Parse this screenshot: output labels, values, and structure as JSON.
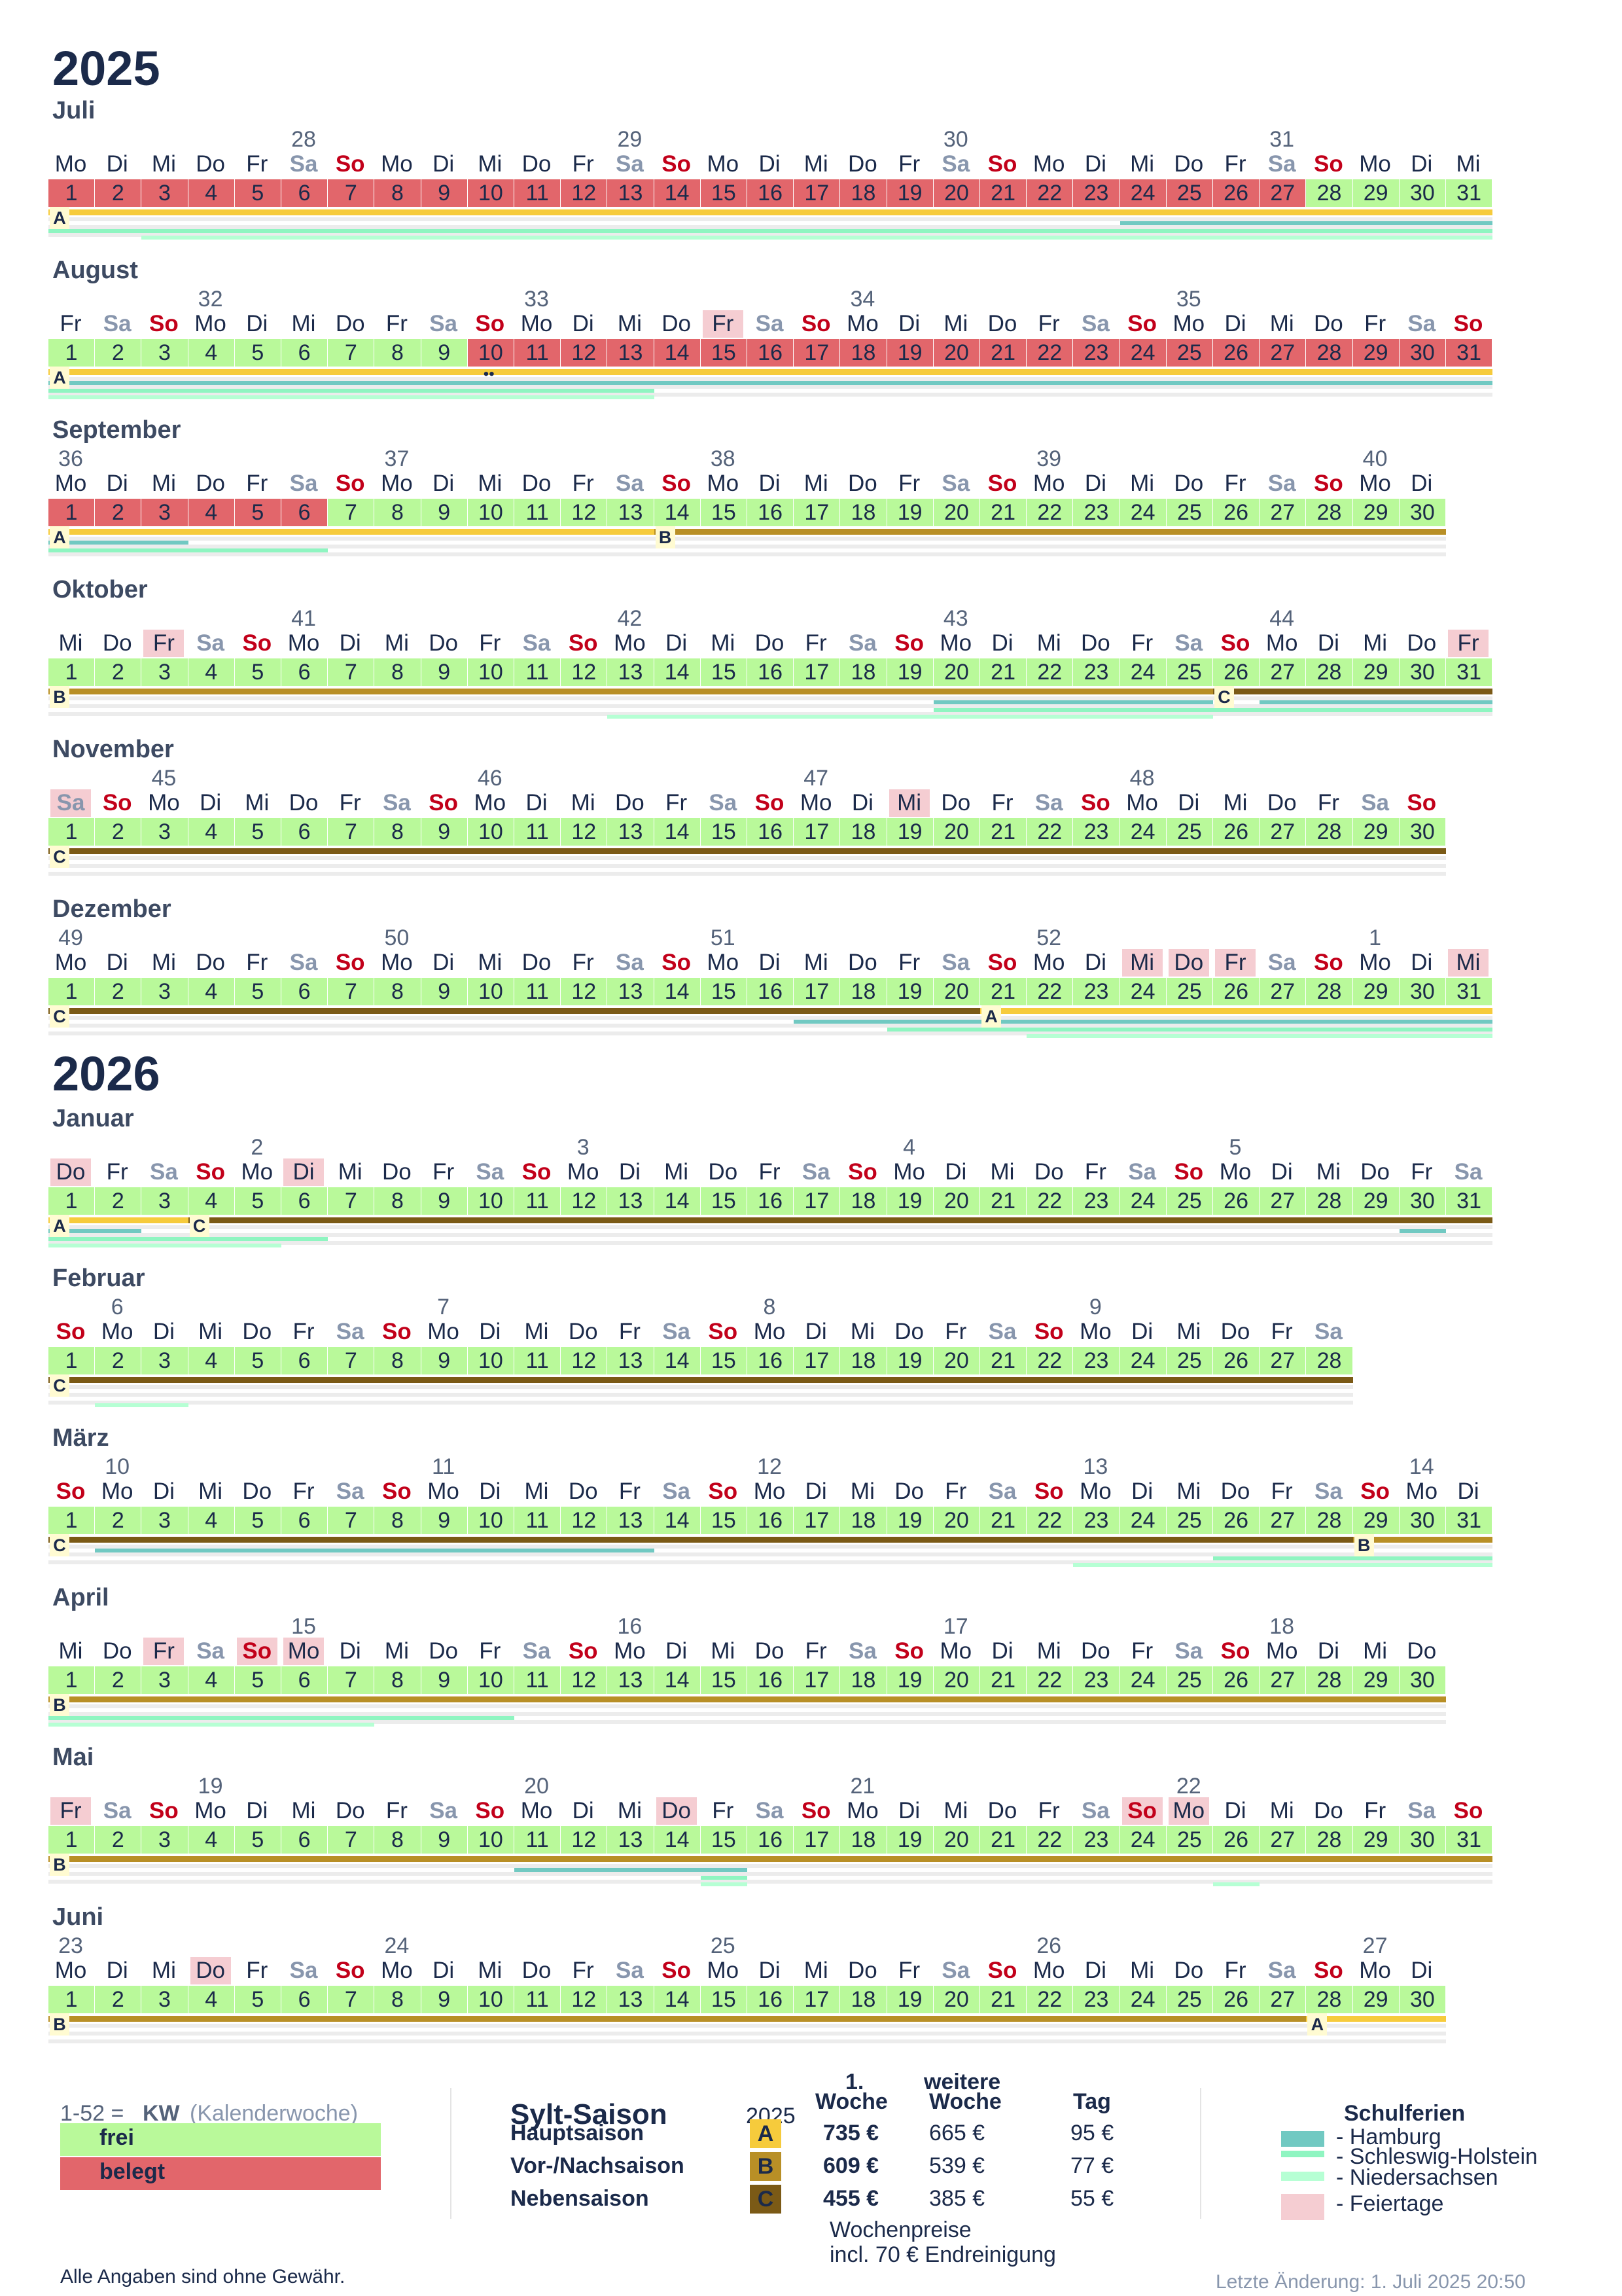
{
  "years": [
    "2025",
    "2026"
  ],
  "months": [
    {
      "name": "Juli",
      "days": 31,
      "start": 1,
      "kw": [
        [
          "28",
          6
        ],
        [
          "29",
          13
        ],
        [
          "30",
          20
        ],
        [
          "31",
          27
        ]
      ],
      "busyTo": 12,
      "hatch": [
        12,
        27
      ],
      "busyFrom": 13,
      "busyUntil": 27,
      "seasons": [
        [
          "A",
          1,
          31
        ]
      ],
      "stag": [
        [
          "A",
          1
        ]
      ],
      "hols": [],
      "school": {
        "hh": [
          [
            24,
            31
          ]
        ],
        "sh": [
          [
            1,
            31
          ]
        ],
        "ni": [
          [
            3,
            31
          ]
        ]
      },
      "marks": []
    },
    {
      "name": "August",
      "days": 31,
      "start": 5,
      "kw": [
        [
          "32",
          4
        ],
        [
          "33",
          11
        ],
        [
          "34",
          18
        ],
        [
          "35",
          25
        ]
      ],
      "busy": [
        [
          10,
          31
        ]
      ],
      "hatchd": [
        10,
        24
      ],
      "seasons": [
        [
          "A",
          1,
          31
        ]
      ],
      "stag": [
        [
          "A",
          1
        ]
      ],
      "hols": [
        15
      ],
      "school": {
        "hh": [
          [
            1,
            31
          ]
        ],
        "sh": [
          [
            1,
            13
          ]
        ],
        "ni": [
          [
            1,
            13
          ]
        ]
      },
      "marks": [
        [
          "••",
          10
        ]
      ]
    },
    {
      "name": "September",
      "days": 30,
      "start": 1,
      "kw": [
        [
          "36",
          1
        ],
        [
          "37",
          8
        ],
        [
          "38",
          15
        ],
        [
          "39",
          22
        ],
        [
          "40",
          29
        ]
      ],
      "busy": [
        [
          1,
          6
        ]
      ],
      "hatchd": [
        6
      ],
      "seasons": [
        [
          "A",
          1,
          13
        ],
        [
          "B",
          14,
          30
        ]
      ],
      "stag": [
        [
          "A",
          1
        ],
        [
          "B",
          14
        ]
      ],
      "hols": [],
      "school": {
        "hh": [
          [
            1,
            3
          ]
        ],
        "sh": [
          [
            1,
            6
          ]
        ],
        "ni": []
      },
      "marks": []
    },
    {
      "name": "Oktober",
      "days": 31,
      "start": 3,
      "kw": [
        [
          "41",
          6
        ],
        [
          "42",
          13
        ],
        [
          "43",
          20
        ],
        [
          "44",
          27
        ]
      ],
      "busy": [],
      "seasons": [
        [
          "B",
          1,
          25
        ],
        [
          "C",
          26,
          31
        ]
      ],
      "stag": [
        [
          "B",
          1
        ],
        [
          "C",
          26
        ]
      ],
      "hols": [
        3,
        31
      ],
      "school": {
        "hh": [
          [
            20,
            25
          ],
          [
            27,
            31
          ]
        ],
        "sh": [
          [
            20,
            31
          ]
        ],
        "ni": [
          [
            13,
            25
          ]
        ]
      },
      "marks": []
    },
    {
      "name": "November",
      "days": 30,
      "start": 6,
      "kw": [
        [
          "45",
          3
        ],
        [
          "46",
          10
        ],
        [
          "47",
          17
        ],
        [
          "48",
          24
        ]
      ],
      "busy": [],
      "seasons": [
        [
          "C",
          1,
          30
        ]
      ],
      "stag": [
        [
          "C",
          1
        ]
      ],
      "hols": [
        1,
        19
      ],
      "school": {
        "hh": [],
        "sh": [],
        "ni": []
      },
      "marks": []
    },
    {
      "name": "Dezember",
      "days": 31,
      "start": 1,
      "kw": [
        [
          "49",
          1
        ],
        [
          "50",
          8
        ],
        [
          "51",
          15
        ],
        [
          "52",
          22
        ],
        [
          "1",
          29
        ]
      ],
      "busy": [],
      "seasons": [
        [
          "C",
          1,
          20
        ],
        [
          "A",
          21,
          31
        ]
      ],
      "stag": [
        [
          "C",
          1
        ],
        [
          "A",
          21
        ]
      ],
      "hols": [
        24,
        25,
        26,
        31
      ],
      "school": {
        "hh": [
          [
            17,
            31
          ]
        ],
        "sh": [
          [
            19,
            31
          ]
        ],
        "ni": [
          [
            22,
            31
          ]
        ]
      },
      "marks": []
    },
    {
      "name": "Januar",
      "days": 31,
      "start": 4,
      "kw": [
        [
          "2",
          5
        ],
        [
          "3",
          12
        ],
        [
          "4",
          19
        ],
        [
          "5",
          26
        ]
      ],
      "busy": [],
      "seasons": [
        [
          "A",
          1,
          3
        ],
        [
          "C",
          4,
          31
        ]
      ],
      "stag": [
        [
          "A",
          1
        ],
        [
          "C",
          4
        ]
      ],
      "hols": [
        1,
        6
      ],
      "school": {
        "hh": [
          [
            1,
            2
          ],
          [
            30,
            30
          ]
        ],
        "sh": [
          [
            1,
            6
          ]
        ],
        "ni": [
          [
            1,
            5
          ]
        ]
      },
      "marks": []
    },
    {
      "name": "Februar",
      "days": 28,
      "start": 7,
      "kw": [
        [
          "6",
          2
        ],
        [
          "7",
          9
        ],
        [
          "8",
          16
        ],
        [
          "9",
          23
        ]
      ],
      "busy": [],
      "seasons": [
        [
          "C",
          1,
          28
        ]
      ],
      "stag": [
        [
          "C",
          1
        ]
      ],
      "hols": [],
      "school": {
        "hh": [],
        "sh": [],
        "ni": [
          [
            2,
            3
          ]
        ]
      },
      "marks": []
    },
    {
      "name": "März",
      "days": 31,
      "start": 7,
      "kw": [
        [
          "10",
          2
        ],
        [
          "11",
          9
        ],
        [
          "12",
          16
        ],
        [
          "13",
          23
        ],
        [
          "14",
          30
        ]
      ],
      "busy": [],
      "seasons": [
        [
          "C",
          1,
          28
        ],
        [
          "B",
          29,
          31
        ]
      ],
      "stag": [
        [
          "C",
          1
        ],
        [
          "B",
          29
        ]
      ],
      "hols": [],
      "school": {
        "hh": [
          [
            2,
            13
          ]
        ],
        "sh": [
          [
            26,
            31
          ]
        ],
        "ni": [
          [
            23,
            31
          ]
        ]
      },
      "marks": []
    },
    {
      "name": "April",
      "days": 30,
      "start": 3,
      "kw": [
        [
          "15",
          6
        ],
        [
          "16",
          13
        ],
        [
          "17",
          20
        ],
        [
          "18",
          27
        ]
      ],
      "busy": [],
      "seasons": [
        [
          "B",
          1,
          30
        ]
      ],
      "stag": [
        [
          "B",
          1
        ]
      ],
      "hols": [
        3,
        5,
        6
      ],
      "school": {
        "hh": [],
        "sh": [
          [
            1,
            10
          ]
        ],
        "ni": [
          [
            1,
            7
          ]
        ]
      },
      "marks": []
    },
    {
      "name": "Mai",
      "days": 31,
      "start": 5,
      "kw": [
        [
          "19",
          4
        ],
        [
          "20",
          11
        ],
        [
          "21",
          18
        ],
        [
          "22",
          25
        ]
      ],
      "busy": [],
      "seasons": [
        [
          "B",
          1,
          31
        ]
      ],
      "stag": [
        [
          "B",
          1
        ]
      ],
      "hols": [
        1,
        14,
        24,
        25
      ],
      "school": {
        "hh": [
          [
            11,
            15
          ]
        ],
        "sh": [
          [
            15,
            15
          ]
        ],
        "ni": [
          [
            15,
            15
          ],
          [
            26,
            26
          ]
        ]
      },
      "marks": []
    },
    {
      "name": "Juni",
      "days": 30,
      "start": 1,
      "kw": [
        [
          "23",
          1
        ],
        [
          "24",
          8
        ],
        [
          "25",
          15
        ],
        [
          "26",
          22
        ],
        [
          "27",
          29
        ]
      ],
      "busy": [],
      "seasons": [
        [
          "B",
          1,
          27
        ],
        [
          "A",
          28,
          30
        ]
      ],
      "stag": [
        [
          "B",
          1
        ],
        [
          "A",
          28
        ]
      ],
      "hols": [
        4
      ],
      "school": {
        "hh": [],
        "sh": [],
        "ni": []
      },
      "marks": []
    }
  ],
  "weekdays": [
    "Mo",
    "Di",
    "Mi",
    "Do",
    "Fr",
    "Sa",
    "So"
  ],
  "legend": {
    "kw_prefix": "1-52  =  ",
    "kw_bold": "KW",
    "kw_suffix": " (Kalenderwoche)",
    "frei": "frei",
    "belegt": "belegt",
    "colors": {
      "frei": "#b9f99a",
      "belegt": "#e2666b",
      "A": "#f6cb3c",
      "B": "#b88f26",
      "C": "#7b5a16",
      "hamburg": "#71c9c2",
      "sh": "#8ff5c1",
      "ni": "#b6ffd4",
      "feiertage": "#f5cdd2"
    }
  },
  "prices": {
    "title": "Sylt-Saison",
    "year": "2025",
    "col1": "1. Woche",
    "col1a": "1.",
    "col1b": "Woche",
    "col2a": "weitere",
    "col2b": "Woche",
    "col3": "Tag",
    "rows": [
      {
        "name": "Hauptsaison",
        "code": "A",
        "w1": "735 €",
        "w2": "665 €",
        "day": "95 €"
      },
      {
        "name": "Vor-/Nachsaison",
        "code": "B",
        "w1": "609 €",
        "w2": "539 €",
        "day": "77 €"
      },
      {
        "name": "Nebensaison",
        "code": "C",
        "w1": "455 €",
        "w2": "385 €",
        "day": "55 €"
      }
    ],
    "note1": "Wochenpreise",
    "note2": "incl. 70 € Endreinigung"
  },
  "schulferien": {
    "title": "Schulferien",
    "items": [
      "-  Hamburg",
      "-  Schleswig-Holstein",
      "-  Niedersachsen",
      "-  Feiertage"
    ]
  },
  "footer": {
    "disclaimer": "Alle Angaben sind ohne Gewähr.",
    "last_change": "Letzte Änderung:  1. Juli 2025  20:50"
  }
}
